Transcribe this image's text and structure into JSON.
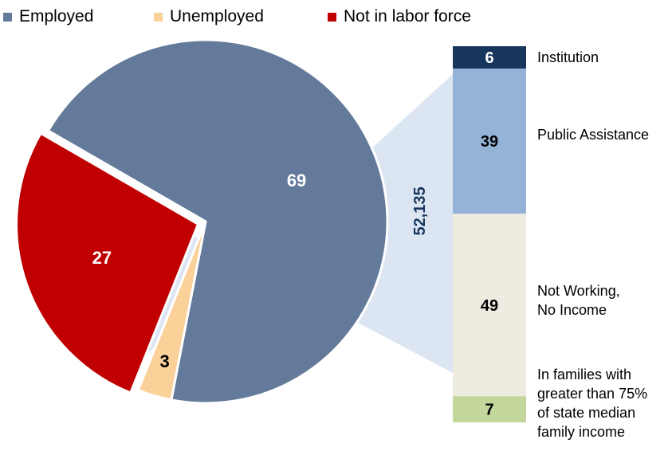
{
  "chart_data": [
    {
      "type": "pie",
      "legend_position": "top",
      "slices": [
        {
          "name": "Employed",
          "value": 69,
          "color": "#647a9a"
        },
        {
          "name": "Unemployed",
          "value": 3,
          "color": "#fbd19a"
        },
        {
          "name": "Not in labor force",
          "value": 27,
          "color": "#c00000"
        }
      ]
    },
    {
      "type": "bar",
      "stacked": true,
      "total_label": "52,135",
      "segments": [
        {
          "value": 6,
          "label": "Institution",
          "color": "#17365d",
          "value_color": "#ffffff"
        },
        {
          "value": 39,
          "label": "Public Assistance",
          "color": "#95b3d7",
          "value_color": "#000000"
        },
        {
          "value": 49,
          "label_lines": [
            "Not Working,",
            "No Income"
          ],
          "color": "#eeebe0",
          "value_color": "#000000"
        },
        {
          "value": 7,
          "label_lines": [
            "In families with",
            "greater than 75%",
            "of state median",
            "family income"
          ],
          "color": "#c3d69b",
          "value_color": "#000000"
        }
      ]
    }
  ],
  "colors": {
    "connector": "#dce6f2",
    "total_label": "#17365d"
  }
}
